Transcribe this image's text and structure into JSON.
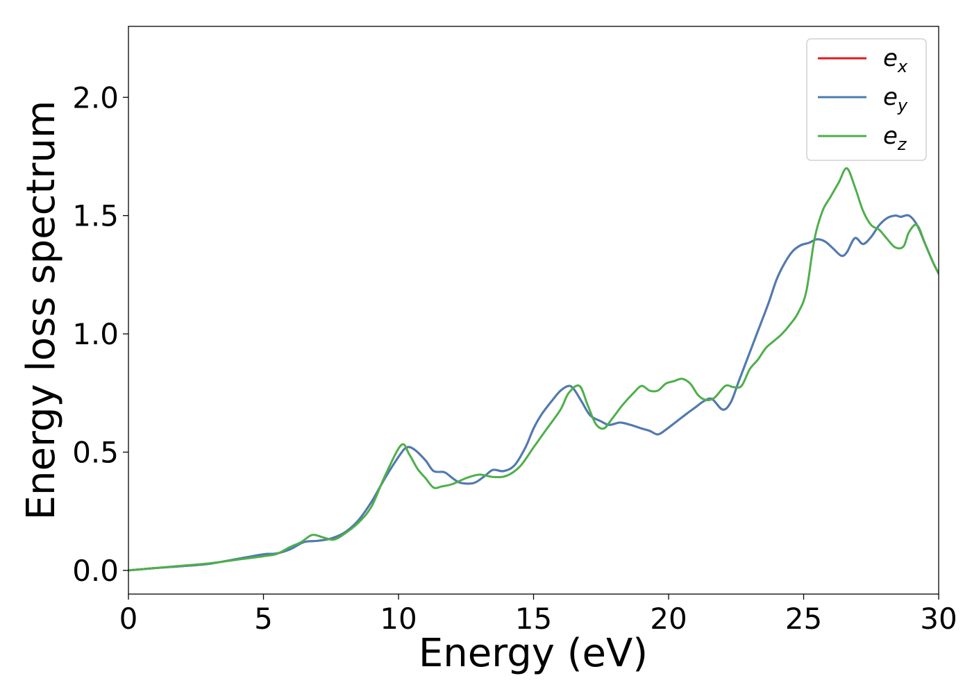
{
  "chart_data": {
    "type": "line",
    "title": "",
    "xlabel": "Energy (eV)",
    "ylabel": "Energy loss spectrum",
    "xlim": [
      0,
      30
    ],
    "ylim": [
      -0.1,
      2.3
    ],
    "xticks": [
      0,
      5,
      10,
      15,
      20,
      25,
      30
    ],
    "xtick_labels": [
      "0",
      "5",
      "10",
      "15",
      "20",
      "25",
      "30"
    ],
    "yticks": [
      0.0,
      0.5,
      1.0,
      1.5,
      2.0
    ],
    "ytick_labels": [
      "0.0",
      "0.5",
      "1.0",
      "1.5",
      "2.0"
    ],
    "grid": false,
    "legend_position": "top-right",
    "series": [
      {
        "name": "e_x",
        "label_base": "e",
        "label_sub": "x",
        "color": "#e41a1c",
        "x": [
          0,
          1,
          2,
          3,
          4,
          5,
          5.5,
          6,
          6.5,
          7,
          7.5,
          8,
          8.5,
          9,
          9.5,
          10,
          10.3,
          10.6,
          11,
          11.3,
          11.7,
          12,
          12.3,
          12.8,
          13.2,
          13.5,
          13.9,
          14.3,
          14.7,
          15,
          15.3,
          15.7,
          16,
          16.3,
          16.5,
          16.8,
          17.1,
          17.5,
          17.8,
          18.2,
          18.6,
          19,
          19.3,
          19.6,
          19.9,
          20.3,
          20.7,
          21,
          21.3,
          21.6,
          22,
          22.3,
          22.6,
          23,
          23.3,
          23.7,
          24,
          24.3,
          24.6,
          24.9,
          25.2,
          25.5,
          25.8,
          26.1,
          26.4,
          26.6,
          26.9,
          27.2,
          27.5,
          27.8,
          28.1,
          28.4,
          28.6,
          28.9,
          29.2,
          29.5,
          29.8,
          30
        ],
        "y": [
          0.0,
          0.01,
          0.018,
          0.028,
          0.048,
          0.068,
          0.072,
          0.09,
          0.12,
          0.125,
          0.135,
          0.16,
          0.21,
          0.29,
          0.39,
          0.48,
          0.52,
          0.51,
          0.465,
          0.42,
          0.415,
          0.39,
          0.37,
          0.37,
          0.4,
          0.425,
          0.42,
          0.445,
          0.52,
          0.6,
          0.66,
          0.72,
          0.76,
          0.78,
          0.765,
          0.71,
          0.655,
          0.63,
          0.615,
          0.625,
          0.615,
          0.6,
          0.59,
          0.575,
          0.595,
          0.63,
          0.665,
          0.69,
          0.715,
          0.725,
          0.68,
          0.71,
          0.8,
          0.92,
          1.01,
          1.13,
          1.23,
          1.3,
          1.35,
          1.375,
          1.385,
          1.4,
          1.39,
          1.36,
          1.33,
          1.345,
          1.405,
          1.38,
          1.41,
          1.46,
          1.49,
          1.5,
          1.495,
          1.5,
          1.46,
          1.38,
          1.3,
          1.255
        ]
      },
      {
        "name": "e_y",
        "label_base": "e",
        "label_sub": "y",
        "color": "#4a7db5",
        "x": [
          0,
          1,
          2,
          3,
          4,
          5,
          5.5,
          6,
          6.5,
          7,
          7.5,
          8,
          8.5,
          9,
          9.5,
          10,
          10.3,
          10.6,
          11,
          11.3,
          11.7,
          12,
          12.3,
          12.8,
          13.2,
          13.5,
          13.9,
          14.3,
          14.7,
          15,
          15.3,
          15.7,
          16,
          16.3,
          16.5,
          16.8,
          17.1,
          17.5,
          17.8,
          18.2,
          18.6,
          19,
          19.3,
          19.6,
          19.9,
          20.3,
          20.7,
          21,
          21.3,
          21.6,
          22,
          22.3,
          22.6,
          23,
          23.3,
          23.7,
          24,
          24.3,
          24.6,
          24.9,
          25.2,
          25.5,
          25.8,
          26.1,
          26.4,
          26.6,
          26.9,
          27.2,
          27.5,
          27.8,
          28.1,
          28.4,
          28.6,
          28.9,
          29.2,
          29.5,
          29.8,
          30
        ],
        "y": [
          0.0,
          0.01,
          0.018,
          0.028,
          0.048,
          0.068,
          0.072,
          0.09,
          0.12,
          0.125,
          0.135,
          0.16,
          0.21,
          0.29,
          0.39,
          0.48,
          0.52,
          0.51,
          0.465,
          0.42,
          0.415,
          0.39,
          0.37,
          0.37,
          0.4,
          0.425,
          0.42,
          0.445,
          0.52,
          0.6,
          0.66,
          0.72,
          0.76,
          0.78,
          0.765,
          0.71,
          0.655,
          0.63,
          0.615,
          0.625,
          0.615,
          0.6,
          0.59,
          0.575,
          0.595,
          0.63,
          0.665,
          0.69,
          0.715,
          0.725,
          0.68,
          0.71,
          0.8,
          0.92,
          1.01,
          1.13,
          1.23,
          1.3,
          1.35,
          1.375,
          1.385,
          1.4,
          1.39,
          1.36,
          1.33,
          1.345,
          1.405,
          1.38,
          1.41,
          1.46,
          1.49,
          1.5,
          1.495,
          1.5,
          1.46,
          1.38,
          1.3,
          1.255
        ]
      },
      {
        "name": "e_z",
        "label_base": "e",
        "label_sub": "z",
        "color": "#4daf4a",
        "x": [
          0,
          1,
          2,
          3,
          4,
          5,
          5.5,
          6,
          6.4,
          6.8,
          7.2,
          7.6,
          8,
          8.5,
          9,
          9.5,
          10.1,
          10.4,
          10.7,
          11,
          11.3,
          11.6,
          12,
          12.5,
          13,
          13.5,
          14,
          14.5,
          15,
          15.5,
          16,
          16.3,
          16.7,
          17,
          17.3,
          17.6,
          17.9,
          18.3,
          18.7,
          19,
          19.3,
          19.6,
          19.9,
          20.2,
          20.5,
          20.8,
          21.1,
          21.4,
          21.7,
          22.1,
          22.4,
          22.7,
          23,
          23.3,
          23.6,
          23.9,
          24.2,
          24.5,
          24.8,
          25.1,
          25.4,
          25.7,
          26,
          26.3,
          26.6,
          26.9,
          27.2,
          27.5,
          27.8,
          28.1,
          28.4,
          28.7,
          28.9,
          29.2,
          29.5,
          29.8,
          30
        ],
        "y": [
          0.0,
          0.01,
          0.02,
          0.03,
          0.045,
          0.06,
          0.07,
          0.1,
          0.12,
          0.15,
          0.14,
          0.13,
          0.155,
          0.2,
          0.27,
          0.4,
          0.53,
          0.49,
          0.43,
          0.39,
          0.35,
          0.355,
          0.365,
          0.39,
          0.405,
          0.395,
          0.4,
          0.44,
          0.52,
          0.6,
          0.68,
          0.75,
          0.78,
          0.7,
          0.62,
          0.6,
          0.64,
          0.7,
          0.75,
          0.78,
          0.76,
          0.76,
          0.79,
          0.8,
          0.81,
          0.79,
          0.74,
          0.72,
          0.73,
          0.78,
          0.775,
          0.78,
          0.85,
          0.89,
          0.94,
          0.97,
          1.0,
          1.04,
          1.09,
          1.18,
          1.4,
          1.52,
          1.58,
          1.64,
          1.7,
          1.62,
          1.52,
          1.46,
          1.44,
          1.4,
          1.365,
          1.37,
          1.43,
          1.46,
          1.38,
          1.3,
          1.255
        ]
      }
    ]
  }
}
